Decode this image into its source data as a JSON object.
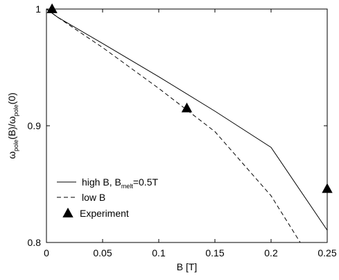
{
  "chart_data": {
    "type": "line",
    "xlabel": "B [T]",
    "ylabel": {
      "parts": [
        {
          "t": "ω",
          "sub": false
        },
        {
          "t": "pole",
          "sub": true
        },
        {
          "t": "(B)/ω",
          "sub": false
        },
        {
          "t": "pole",
          "sub": true
        },
        {
          "t": "(0)",
          "sub": false
        }
      ]
    },
    "xlim": [
      0,
      0.25
    ],
    "ylim": [
      0.8,
      1.0
    ],
    "x_ticks": [
      {
        "value": 0,
        "label": "0"
      },
      {
        "value": 0.05,
        "label": "0.05"
      },
      {
        "value": 0.1,
        "label": "0.1"
      },
      {
        "value": 0.15,
        "label": "0.15"
      },
      {
        "value": 0.2,
        "label": "0.2"
      },
      {
        "value": 0.25,
        "label": "0.25"
      }
    ],
    "y_ticks": [
      {
        "value": 0.8,
        "label": "0.8"
      },
      {
        "value": 0.9,
        "label": "0.9"
      },
      {
        "value": 1.0,
        "label": "1"
      }
    ],
    "grid": false,
    "legend_position": "bottom-left",
    "series": [
      {
        "key": "high-b",
        "label_parts": [
          {
            "t": "high B, B",
            "sub": false
          },
          {
            "t": "melt",
            "sub": true
          },
          {
            "t": "=0.5T",
            "sub": false
          }
        ],
        "style": "solid",
        "x": [
          0.0,
          0.01,
          0.05,
          0.1,
          0.15,
          0.2,
          0.25
        ],
        "y": [
          1.0,
          0.993,
          0.9705,
          0.942,
          0.9125,
          0.8815,
          0.8105
        ]
      },
      {
        "key": "low-b",
        "label_parts": [
          {
            "t": "low B",
            "sub": false
          }
        ],
        "style": "dashed",
        "x": [
          0.0,
          0.01,
          0.05,
          0.1,
          0.15,
          0.2,
          0.226
        ],
        "y": [
          1.0,
          0.993,
          0.967,
          0.932,
          0.895,
          0.84,
          0.8
        ]
      },
      {
        "key": "experiment",
        "label_parts": [
          {
            "t": "Experiment",
            "sub": false
          }
        ],
        "style": "marker-triangle",
        "x": [
          0.005,
          0.125,
          0.25
        ],
        "y": [
          1.0,
          0.915,
          0.846
        ]
      }
    ]
  }
}
